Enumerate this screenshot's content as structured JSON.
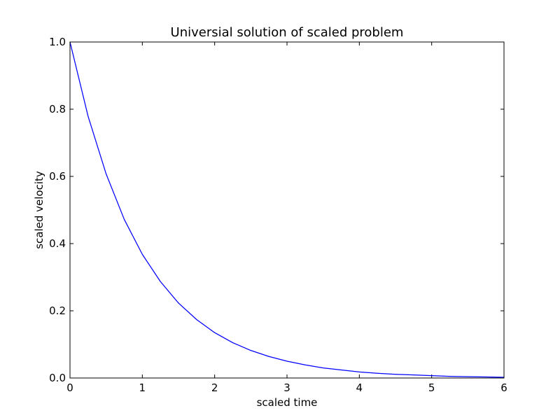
{
  "chart_data": {
    "type": "line",
    "title": "Universial solution of scaled problem",
    "xlabel": "scaled time",
    "ylabel": "scaled velocity",
    "xlim": [
      0,
      6
    ],
    "ylim": [
      0,
      1
    ],
    "x_ticks": [
      0,
      1,
      2,
      3,
      4,
      5,
      6
    ],
    "x_tick_labels": [
      "0",
      "1",
      "2",
      "3",
      "4",
      "5",
      "6"
    ],
    "y_ticks": [
      0,
      0.2,
      0.4,
      0.6,
      0.8,
      1.0
    ],
    "y_tick_labels": [
      "0.0",
      "0.2",
      "0.4",
      "0.6",
      "0.8",
      "1.0"
    ],
    "grid": false,
    "series": [
      {
        "color": "#0000ff",
        "x": [
          0,
          0.25,
          0.5,
          0.75,
          1.0,
          1.25,
          1.5,
          1.75,
          2.0,
          2.25,
          2.5,
          2.75,
          3.0,
          3.25,
          3.5,
          3.75,
          4.0,
          4.25,
          4.5,
          4.75,
          5.0,
          5.25,
          5.5,
          5.75,
          6.0
        ],
        "y": [
          1.0,
          0.779,
          0.607,
          0.472,
          0.368,
          0.287,
          0.223,
          0.174,
          0.135,
          0.105,
          0.082,
          0.064,
          0.05,
          0.039,
          0.03,
          0.024,
          0.018,
          0.014,
          0.011,
          0.009,
          0.007,
          0.005,
          0.004,
          0.003,
          0.002
        ]
      }
    ]
  }
}
